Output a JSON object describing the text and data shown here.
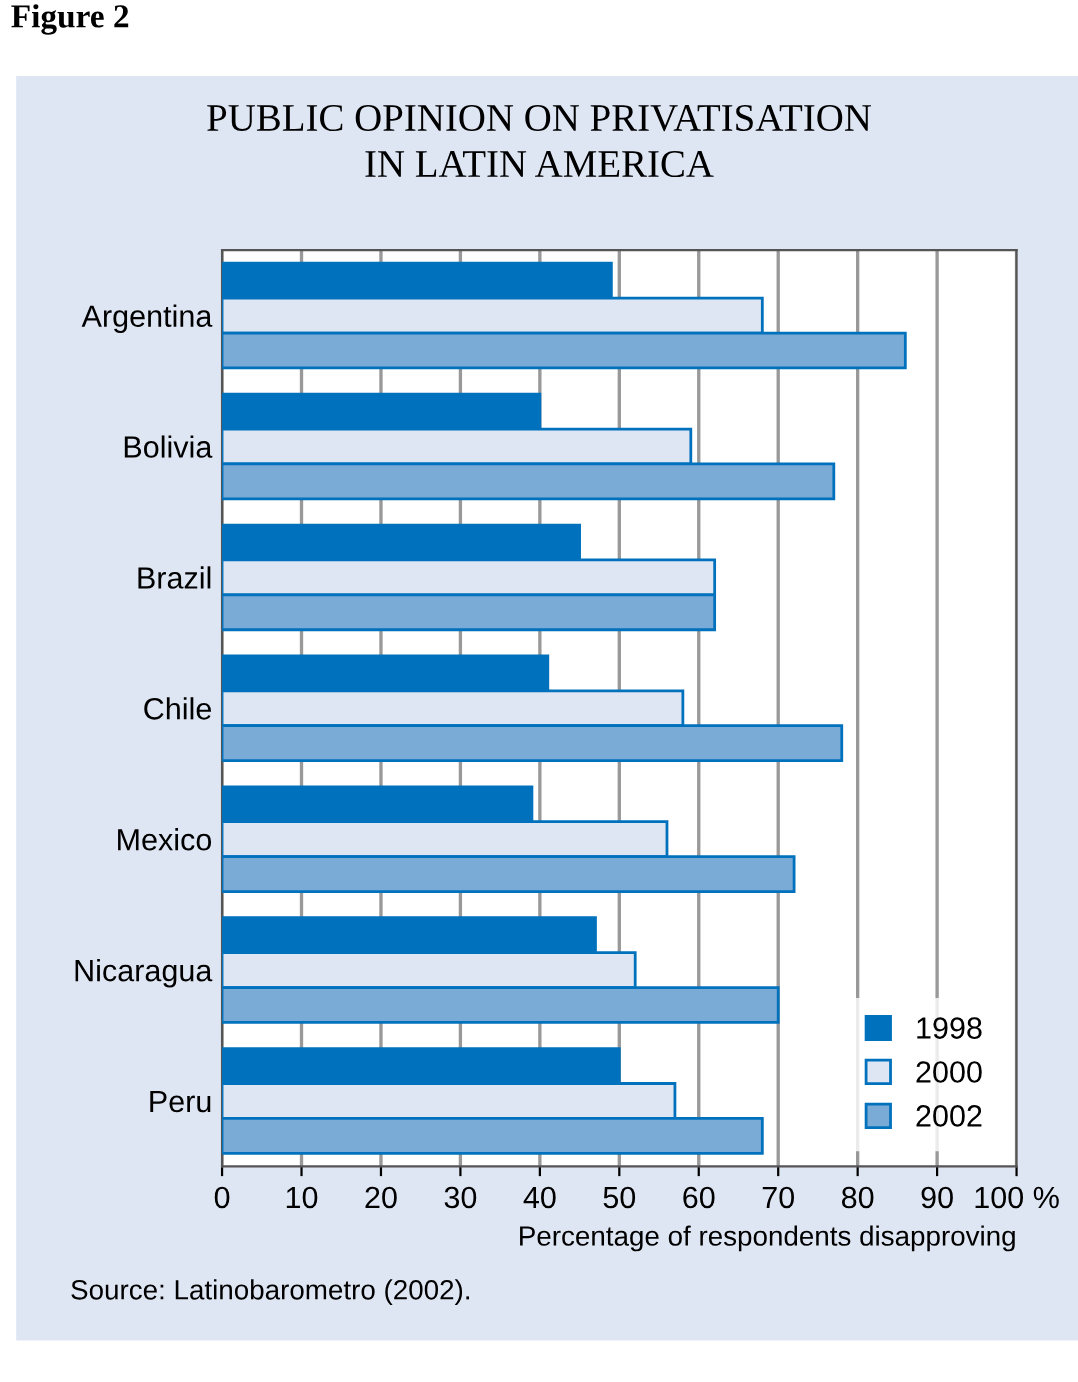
{
  "chart_data": {
    "type": "bar",
    "orientation": "horizontal",
    "title": "PUBLIC OPINION ON PRIVATISATION\nIN LATIN AMERICA",
    "xlabel": "Percentage of respondents disapproving",
    "categories": [
      "Argentina",
      "Bolivia",
      "Brazil",
      "Chile",
      "Mexico",
      "Nicaragua",
      "Peru"
    ],
    "series": [
      {
        "name": "1998",
        "color": "#0071bc",
        "values": [
          49,
          40,
          45,
          41,
          39,
          47,
          50
        ]
      },
      {
        "name": "2000",
        "color": "#dfe6f3",
        "values": [
          68,
          59,
          62,
          58,
          56,
          52,
          57
        ]
      },
      {
        "name": "2002",
        "color": "#7aaad6",
        "values": [
          86,
          77,
          62,
          78,
          72,
          70,
          68
        ]
      }
    ],
    "xlim": [
      0,
      100
    ],
    "xticks": [
      0,
      10,
      20,
      30,
      40,
      50,
      60,
      70,
      80,
      90,
      {
        "value": 100,
        "label": "100 %"
      }
    ],
    "grid": "x",
    "legend": "bottom right",
    "annotations": [
      "Figure 2",
      "Source: Latinobarometro (2002)."
    ]
  }
}
